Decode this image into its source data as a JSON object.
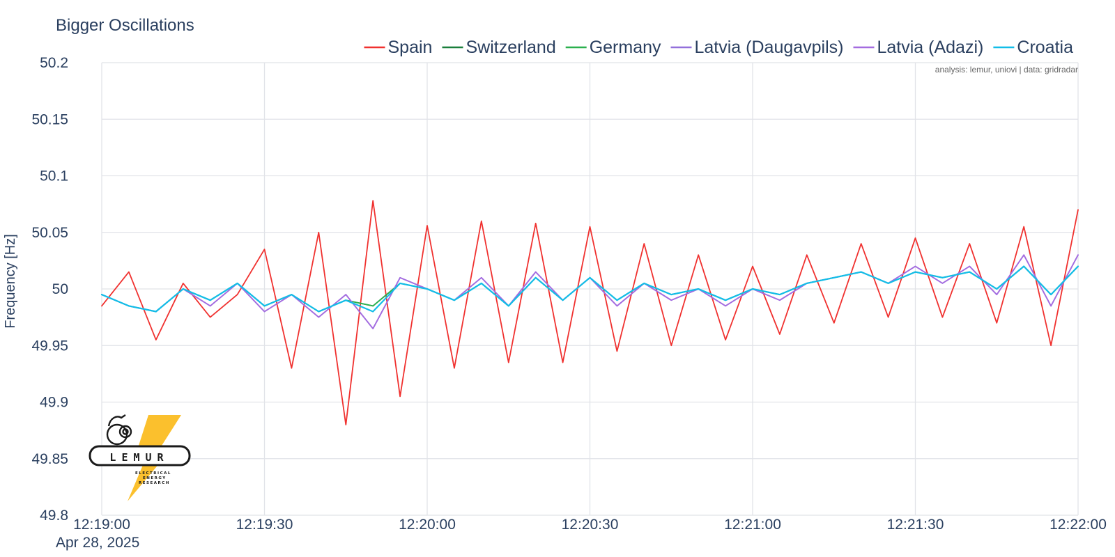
{
  "chart_data": {
    "type": "line",
    "title": "Bigger Oscillations",
    "ylabel": "Frequency [Hz]",
    "xlabel": "",
    "date_label": "Apr 28, 2025",
    "annotation": "analysis: lemur, uniovi | data: gridradar",
    "logo": {
      "name": "LEMUR",
      "tagline": "ELECTRICAL ENERGY RESEARCH"
    },
    "ylim": [
      49.8,
      50.2
    ],
    "yticks": [
      "49.8",
      "49.85",
      "49.9",
      "49.95",
      "50",
      "50.05",
      "50.1",
      "50.15",
      "50.2"
    ],
    "xlim": [
      "12:19:00",
      "12:22:00"
    ],
    "xticks": [
      "12:19:00",
      "12:19:30",
      "12:20:00",
      "12:20:30",
      "12:21:00",
      "12:21:30",
      "12:22:00"
    ],
    "grid": true,
    "legend_position": "top-right",
    "x": [
      "12:19:00",
      "12:19:05",
      "12:19:10",
      "12:19:15",
      "12:19:20",
      "12:19:25",
      "12:19:30",
      "12:19:35",
      "12:19:40",
      "12:19:45",
      "12:19:50",
      "12:19:55",
      "12:20:00",
      "12:20:05",
      "12:20:10",
      "12:20:15",
      "12:20:20",
      "12:20:25",
      "12:20:30",
      "12:20:35",
      "12:20:40",
      "12:20:45",
      "12:20:50",
      "12:20:55",
      "12:21:00",
      "12:21:05",
      "12:21:10",
      "12:21:15",
      "12:21:20",
      "12:21:25",
      "12:21:30",
      "12:21:35",
      "12:21:40",
      "12:21:45",
      "12:21:50",
      "12:21:55",
      "12:22:00"
    ],
    "series": [
      {
        "name": "Spain",
        "color": "#f0312f",
        "values": [
          49.985,
          50.015,
          49.955,
          50.005,
          49.975,
          49.995,
          50.035,
          49.93,
          50.05,
          49.88,
          50.078,
          49.905,
          50.056,
          49.93,
          50.06,
          49.935,
          50.058,
          49.935,
          50.055,
          49.945,
          50.04,
          49.95,
          50.03,
          49.955,
          50.02,
          49.96,
          50.03,
          49.97,
          50.04,
          49.975,
          50.045,
          49.975,
          50.04,
          49.97,
          50.055,
          49.95,
          50.07
        ]
      },
      {
        "name": "Switzerland",
        "color": "#1a7f3c",
        "values": [
          49.995,
          49.985,
          49.98,
          50.0,
          49.99,
          50.005,
          49.985,
          49.995,
          49.98,
          49.99,
          49.985,
          50.005,
          50.0,
          49.99,
          50.005,
          49.985,
          50.01,
          49.99,
          50.01,
          49.99,
          50.005,
          49.995,
          50.0,
          49.99,
          50.0,
          49.995,
          50.005,
          50.01,
          50.015,
          50.005,
          50.015,
          50.01,
          50.015,
          50.0,
          50.02,
          49.995,
          50.02
        ]
      },
      {
        "name": "Germany",
        "color": "#2bb04e",
        "values": [
          49.995,
          49.985,
          49.98,
          50.0,
          49.99,
          50.005,
          49.985,
          49.995,
          49.98,
          49.99,
          49.985,
          50.005,
          50.0,
          49.99,
          50.005,
          49.985,
          50.01,
          49.99,
          50.01,
          49.99,
          50.005,
          49.995,
          50.0,
          49.99,
          50.0,
          49.995,
          50.005,
          50.01,
          50.015,
          50.005,
          50.015,
          50.01,
          50.015,
          50.0,
          50.02,
          49.995,
          50.02
        ]
      },
      {
        "name": "Latvia (Daugavpils)",
        "color": "#9370db",
        "values": [
          49.995,
          49.985,
          49.98,
          50.0,
          49.985,
          50.005,
          49.98,
          49.995,
          49.975,
          49.995,
          49.965,
          50.01,
          50.0,
          49.99,
          50.01,
          49.985,
          50.015,
          49.99,
          50.01,
          49.985,
          50.005,
          49.99,
          50.0,
          49.985,
          50.0,
          49.99,
          50.005,
          50.01,
          50.015,
          50.005,
          50.02,
          50.005,
          50.02,
          49.995,
          50.03,
          49.985,
          50.03
        ]
      },
      {
        "name": "Latvia (Adazi)",
        "color": "#a46ce0",
        "values": [
          49.995,
          49.985,
          49.98,
          50.0,
          49.985,
          50.005,
          49.98,
          49.995,
          49.975,
          49.995,
          49.965,
          50.01,
          50.0,
          49.99,
          50.01,
          49.985,
          50.015,
          49.99,
          50.01,
          49.985,
          50.005,
          49.99,
          50.0,
          49.985,
          50.0,
          49.99,
          50.005,
          50.01,
          50.015,
          50.005,
          50.02,
          50.005,
          50.02,
          49.995,
          50.03,
          49.985,
          50.03
        ]
      },
      {
        "name": "Croatia",
        "color": "#12bde8",
        "values": [
          49.995,
          49.985,
          49.98,
          50.0,
          49.99,
          50.005,
          49.985,
          49.995,
          49.98,
          49.99,
          49.98,
          50.005,
          50.0,
          49.99,
          50.005,
          49.985,
          50.01,
          49.99,
          50.01,
          49.99,
          50.005,
          49.995,
          50.0,
          49.99,
          50.0,
          49.995,
          50.005,
          50.01,
          50.015,
          50.005,
          50.015,
          50.01,
          50.015,
          50.0,
          50.02,
          49.995,
          50.02
        ]
      }
    ]
  }
}
